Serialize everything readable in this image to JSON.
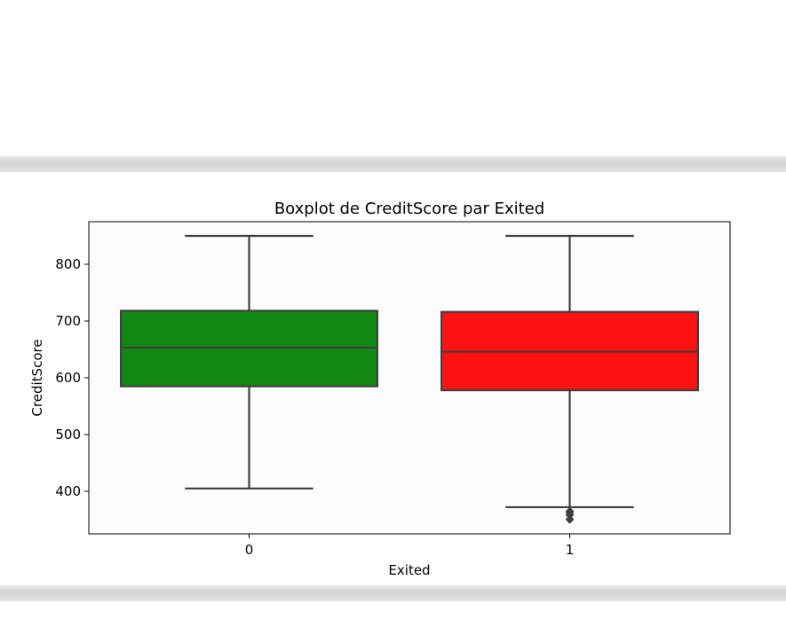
{
  "chart_data": {
    "type": "box",
    "title": "Boxplot de CreditScore par Exited",
    "xlabel": "Exited",
    "ylabel": "CreditScore",
    "categories": [
      "0",
      "1"
    ],
    "ylim": [
      325,
      875
    ],
    "yticks": [
      400,
      500,
      600,
      700,
      800
    ],
    "grid": false,
    "boxes": [
      {
        "category": "0",
        "color": "#008000",
        "whisker_low": 405,
        "q1": 585,
        "median": 653,
        "q3": 718,
        "whisker_high": 850,
        "outliers": []
      },
      {
        "category": "1",
        "color": "#ff0000",
        "whisker_low": 372,
        "q1": 578,
        "median": 646,
        "q3": 716,
        "whisker_high": 850,
        "outliers": [
          350,
          351,
          358,
          359,
          363,
          365
        ]
      }
    ]
  }
}
